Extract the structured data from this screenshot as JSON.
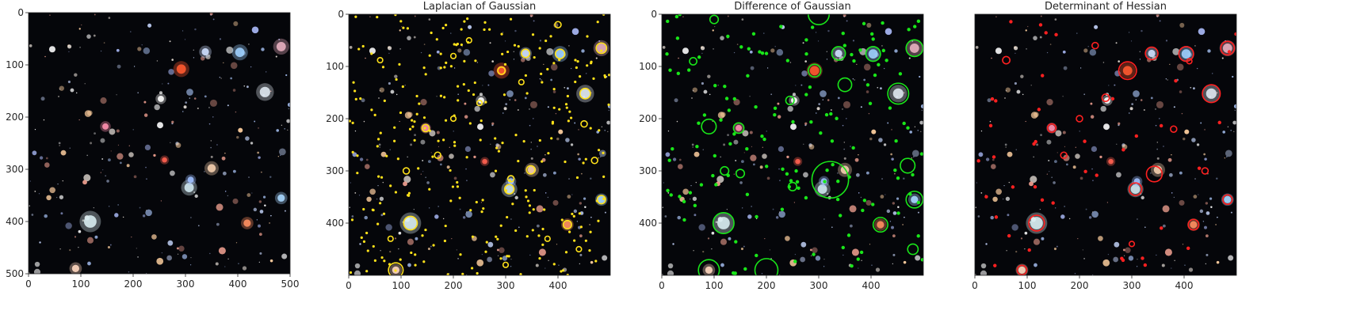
{
  "panels": [
    {
      "title": "",
      "overlay": "none",
      "x_ticks": [
        "0",
        "100",
        "200",
        "300",
        "400",
        "500"
      ],
      "y_ticks": [
        "0",
        "100",
        "200",
        "300",
        "400",
        "500"
      ]
    },
    {
      "title": "Laplacian of Gaussian",
      "overlay": "yellow",
      "x_ticks": [
        "0",
        "100",
        "200",
        "300",
        "400"
      ],
      "y_ticks": [
        "0",
        "100",
        "200",
        "300",
        "400"
      ]
    },
    {
      "title": "Difference of Gaussian",
      "overlay": "lime",
      "x_ticks": [
        "0",
        "100",
        "200",
        "300",
        "400"
      ],
      "y_ticks": [
        "0",
        "100",
        "200",
        "300",
        "400"
      ]
    },
    {
      "title": "Determinant of Hessian",
      "overlay": "red",
      "x_ticks": [
        "0",
        "100",
        "200",
        "300",
        "400"
      ],
      "y_ticks": []
    }
  ],
  "colors": {
    "background": "#05060a",
    "yellow": "#ffe21a",
    "lime": "#19e619",
    "red": "#ff2020"
  }
}
